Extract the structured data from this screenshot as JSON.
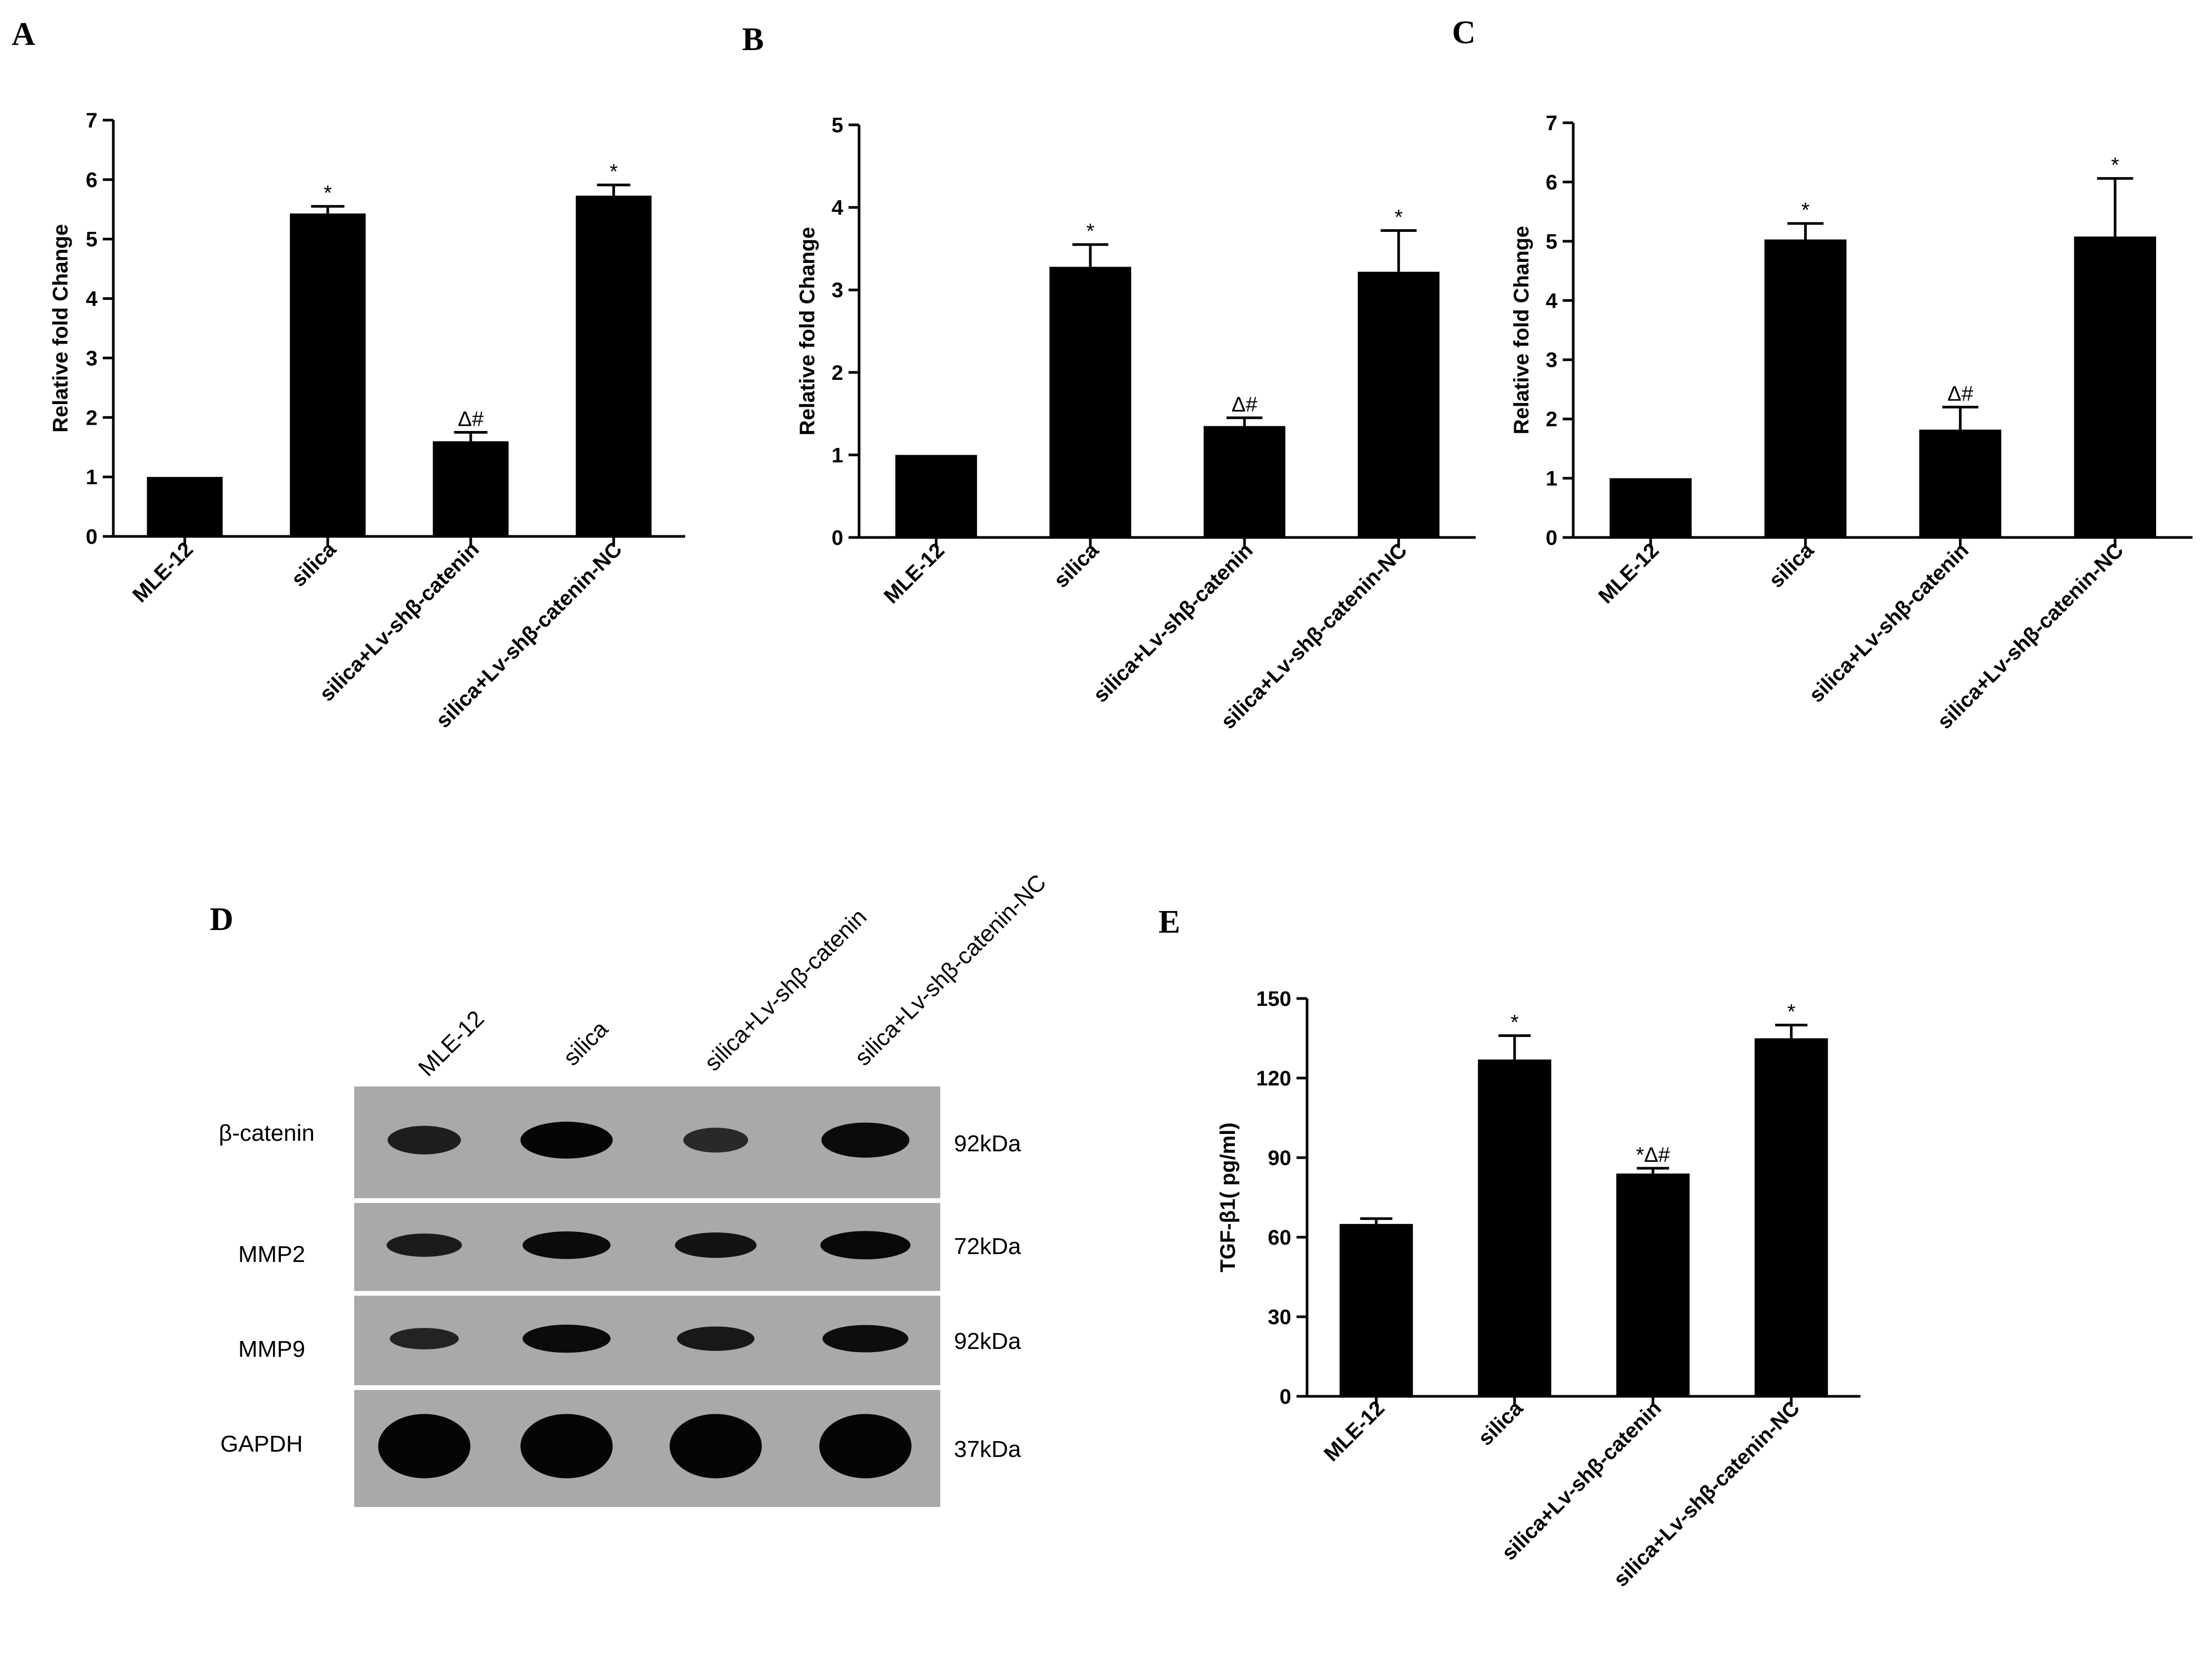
{
  "figure": {
    "panels": {
      "A": "A",
      "B": "B",
      "C": "C",
      "D": "D",
      "E": "E"
    }
  },
  "chart_data": [
    {
      "panel": "A",
      "type": "bar",
      "ylabel": "Relative fold Change",
      "xlabel": "",
      "ylim": [
        0,
        7
      ],
      "yticks": [
        "0",
        "1",
        "2",
        "3",
        "4",
        "5",
        "6",
        "7"
      ],
      "categories": [
        "MLE-12",
        "silica",
        "silica+Lv-shβ-catenin",
        "silica+Lv-shβ-catenin-NC"
      ],
      "values": [
        1.0,
        5.43,
        1.6,
        5.73
      ],
      "errors": [
        0,
        0.12,
        0.15,
        0.18
      ],
      "annotations": [
        "",
        "*",
        "Δ#",
        "*"
      ],
      "color": "#000000"
    },
    {
      "panel": "B",
      "type": "bar",
      "ylabel": "Relative fold Change",
      "xlabel": "",
      "ylim": [
        0,
        5
      ],
      "yticks": [
        "0",
        "1",
        "2",
        "3",
        "4",
        "5"
      ],
      "categories": [
        "MLE-12",
        "silica",
        "silica+Lv-shβ-catenin",
        "silica+Lv-shβ-catenin-NC"
      ],
      "values": [
        1.0,
        3.28,
        1.35,
        3.22
      ],
      "errors": [
        0,
        0.27,
        0.1,
        0.5
      ],
      "annotations": [
        "",
        "*",
        "Δ#",
        "*"
      ],
      "color": "#000000"
    },
    {
      "panel": "C",
      "type": "bar",
      "ylabel": "Relative fold Change",
      "xlabel": "",
      "ylim": [
        0,
        7
      ],
      "yticks": [
        "0",
        "1",
        "2",
        "3",
        "4",
        "5",
        "6",
        "7"
      ],
      "categories": [
        "MLE-12",
        "silica",
        "silica+Lv-shβ-catenin",
        "silica+Lv-shβ-catenin-NC"
      ],
      "values": [
        1.0,
        5.03,
        1.82,
        5.08
      ],
      "errors": [
        0,
        0.27,
        0.38,
        0.98
      ],
      "annotations": [
        "",
        "*",
        "Δ#",
        "*"
      ],
      "color": "#000000"
    },
    {
      "panel": "E",
      "type": "bar",
      "ylabel": "TGF-β1( pg/ml)",
      "xlabel": "",
      "ylim": [
        0,
        150
      ],
      "yticks": [
        "0",
        "30",
        "60",
        "90",
        "120",
        "150"
      ],
      "categories": [
        "MLE-12",
        "silica",
        "silica+Lv-shβ-catenin",
        "silica+Lv-shβ-catenin-NC"
      ],
      "values": [
        65,
        127,
        84,
        135
      ],
      "errors": [
        2,
        9,
        2,
        5
      ],
      "annotations": [
        "",
        "*",
        "*Δ#",
        "*"
      ],
      "color": "#000000"
    }
  ],
  "blot": {
    "lane_labels": [
      "MLE-12",
      "silica",
      "silica+Lv-shβ-catenin",
      "silica+Lv-shβ-catenin-NC"
    ],
    "rows": [
      {
        "protein": "β-catenin",
        "size": "92kDa",
        "intensity": [
          0.55,
          1.0,
          0.35,
          0.9
        ]
      },
      {
        "protein": "MMP2",
        "size": "72kDa",
        "intensity": [
          0.6,
          0.9,
          0.75,
          0.95
        ]
      },
      {
        "protein": "MMP9",
        "size": "92kDa",
        "intensity": [
          0.45,
          0.9,
          0.65,
          0.85
        ]
      },
      {
        "protein": "GAPDH",
        "size": "37kDa",
        "intensity": [
          1.0,
          1.0,
          1.0,
          1.0
        ]
      }
    ]
  }
}
